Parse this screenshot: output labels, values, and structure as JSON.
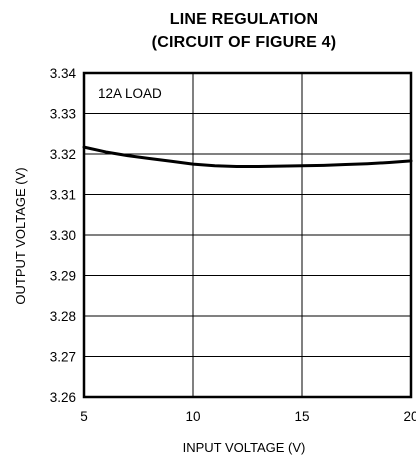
{
  "chart_data": {
    "type": "line",
    "title": "LINE REGULATION",
    "subtitle": "(CIRCUIT OF FIGURE 4)",
    "xlabel": "INPUT VOLTAGE (V)",
    "ylabel": "OUTPUT VOLTAGE (V)",
    "xlim": [
      5,
      20
    ],
    "ylim": [
      3.26,
      3.34
    ],
    "x_ticks": [
      "5",
      "10",
      "15",
      "20"
    ],
    "y_ticks": [
      "3.26",
      "3.27",
      "3.28",
      "3.29",
      "3.30",
      "3.31",
      "3.32",
      "3.33",
      "3.34"
    ],
    "x_tick_values": [
      5,
      10,
      15,
      20
    ],
    "y_tick_values": [
      3.26,
      3.27,
      3.28,
      3.29,
      3.3,
      3.31,
      3.32,
      3.33,
      3.34
    ],
    "grid": true,
    "annotation": "12A LOAD",
    "series": [
      {
        "x": [
          5,
          6,
          7,
          8,
          9,
          10,
          11,
          12,
          13,
          14,
          15,
          16,
          17,
          18,
          19,
          20
        ],
        "y": [
          3.3217,
          3.3205,
          3.3196,
          3.3189,
          3.3182,
          3.3175,
          3.3171,
          3.3169,
          3.3169,
          3.317,
          3.3171,
          3.3172,
          3.3174,
          3.3176,
          3.3179,
          3.3183
        ]
      }
    ]
  }
}
